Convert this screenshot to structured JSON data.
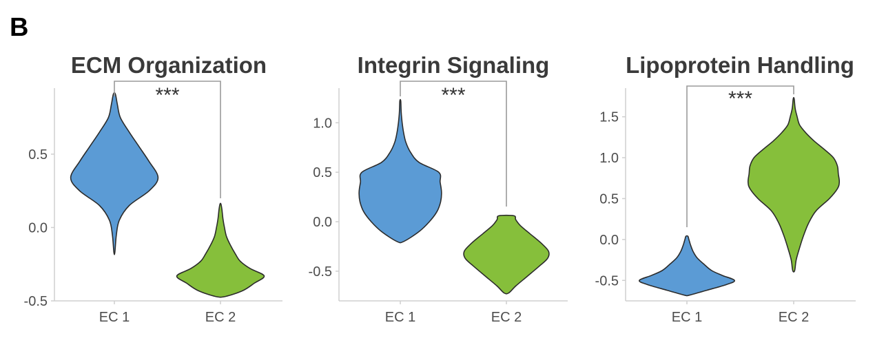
{
  "figure": {
    "panel_letter": "B"
  },
  "chart_data": [
    {
      "type": "violin",
      "title": "ECM Organization",
      "categories": [
        "EC 1",
        "EC 2"
      ],
      "colors": [
        "#5b9bd5",
        "#86bf3b"
      ],
      "ylim": [
        -0.5,
        0.95
      ],
      "yticks": [
        0.5,
        0.0,
        -0.5
      ],
      "ytick_labels": [
        "0.5",
        "0.0",
        "-0.5"
      ],
      "significance": "***",
      "violins": [
        {
          "category": "EC 1",
          "color": "#5b9bd5",
          "min": -0.17,
          "max": 0.91,
          "profile": [
            [
              -0.17,
              0.01
            ],
            [
              -0.05,
              0.04
            ],
            [
              0.05,
              0.1
            ],
            [
              0.15,
              0.3
            ],
            [
              0.25,
              0.7
            ],
            [
              0.34,
              0.88
            ],
            [
              0.45,
              0.7
            ],
            [
              0.55,
              0.5
            ],
            [
              0.65,
              0.3
            ],
            [
              0.75,
              0.12
            ],
            [
              0.84,
              0.06
            ],
            [
              0.91,
              0.02
            ]
          ]
        },
        {
          "category": "EC 2",
          "color": "#86bf3b",
          "min": -0.47,
          "max": 0.16,
          "profile": [
            [
              -0.47,
              0.1
            ],
            [
              -0.43,
              0.45
            ],
            [
              -0.38,
              0.68
            ],
            [
              -0.33,
              0.88
            ],
            [
              -0.28,
              0.6
            ],
            [
              -0.23,
              0.4
            ],
            [
              -0.18,
              0.3
            ],
            [
              -0.12,
              0.2
            ],
            [
              -0.06,
              0.12
            ],
            [
              0.0,
              0.08
            ],
            [
              0.06,
              0.05
            ],
            [
              0.12,
              0.03
            ],
            [
              0.16,
              0.01
            ]
          ]
        }
      ]
    },
    {
      "type": "violin",
      "title": "Integrin Signaling",
      "categories": [
        "EC 1",
        "EC 2"
      ],
      "colors": [
        "#5b9bd5",
        "#86bf3b"
      ],
      "ylim": [
        -0.8,
        1.35
      ],
      "yticks": [
        1.0,
        0.5,
        0.0,
        -0.5
      ],
      "ytick_labels": [
        "1.0",
        "0.5",
        "0.0",
        "-0.5"
      ],
      "significance": "***",
      "violins": [
        {
          "category": "EC 1",
          "color": "#5b9bd5",
          "min": -0.2,
          "max": 1.22,
          "profile": [
            [
              -0.2,
              0.07
            ],
            [
              -0.1,
              0.4
            ],
            [
              0.0,
              0.62
            ],
            [
              0.1,
              0.78
            ],
            [
              0.2,
              0.86
            ],
            [
              0.3,
              0.88
            ],
            [
              0.4,
              0.85
            ],
            [
              0.5,
              0.82
            ],
            [
              0.6,
              0.4
            ],
            [
              0.7,
              0.22
            ],
            [
              0.8,
              0.12
            ],
            [
              0.9,
              0.07
            ],
            [
              1.0,
              0.04
            ],
            [
              1.1,
              0.02
            ],
            [
              1.22,
              0.01
            ]
          ]
        },
        {
          "category": "EC 2",
          "color": "#86bf3b",
          "min": -0.72,
          "max": 0.06,
          "profile": [
            [
              -0.72,
              0.05
            ],
            [
              -0.65,
              0.2
            ],
            [
              -0.55,
              0.45
            ],
            [
              -0.45,
              0.7
            ],
            [
              -0.37,
              0.88
            ],
            [
              -0.3,
              0.9
            ],
            [
              -0.22,
              0.75
            ],
            [
              -0.12,
              0.5
            ],
            [
              -0.04,
              0.3
            ],
            [
              0.02,
              0.2
            ],
            [
              0.06,
              0.16
            ]
          ]
        }
      ]
    },
    {
      "type": "violin",
      "title": "Lipoprotein Handling",
      "categories": [
        "EC 1",
        "EC 2"
      ],
      "colors": [
        "#5b9bd5",
        "#86bf3b"
      ],
      "ylim": [
        -0.75,
        1.85
      ],
      "yticks": [
        1.5,
        1.0,
        0.5,
        0.0,
        -0.5
      ],
      "ytick_labels": [
        "1.5",
        "1.0",
        "0.5",
        "0.0",
        "-0.5"
      ],
      "significance": "***",
      "violins": [
        {
          "category": "EC 1",
          "color": "#5b9bd5",
          "min": -0.68,
          "max": 0.04,
          "profile": [
            [
              -0.68,
              0.05
            ],
            [
              -0.62,
              0.4
            ],
            [
              -0.55,
              0.8
            ],
            [
              -0.5,
              0.96
            ],
            [
              -0.44,
              0.72
            ],
            [
              -0.38,
              0.5
            ],
            [
              -0.3,
              0.34
            ],
            [
              -0.22,
              0.2
            ],
            [
              -0.14,
              0.12
            ],
            [
              -0.06,
              0.07
            ],
            [
              0.0,
              0.04
            ],
            [
              0.04,
              0.02
            ]
          ]
        },
        {
          "category": "EC 2",
          "color": "#86bf3b",
          "min": -0.38,
          "max": 1.72,
          "profile": [
            [
              -0.38,
              0.02
            ],
            [
              -0.25,
              0.05
            ],
            [
              -0.1,
              0.12
            ],
            [
              0.05,
              0.2
            ],
            [
              0.2,
              0.3
            ],
            [
              0.35,
              0.45
            ],
            [
              0.5,
              0.72
            ],
            [
              0.62,
              0.88
            ],
            [
              0.7,
              0.92
            ],
            [
              0.8,
              0.9
            ],
            [
              0.9,
              0.88
            ],
            [
              1.0,
              0.8
            ],
            [
              1.1,
              0.62
            ],
            [
              1.2,
              0.42
            ],
            [
              1.3,
              0.25
            ],
            [
              1.4,
              0.12
            ],
            [
              1.5,
              0.07
            ],
            [
              1.6,
              0.03
            ],
            [
              1.72,
              0.01
            ]
          ]
        }
      ]
    }
  ]
}
